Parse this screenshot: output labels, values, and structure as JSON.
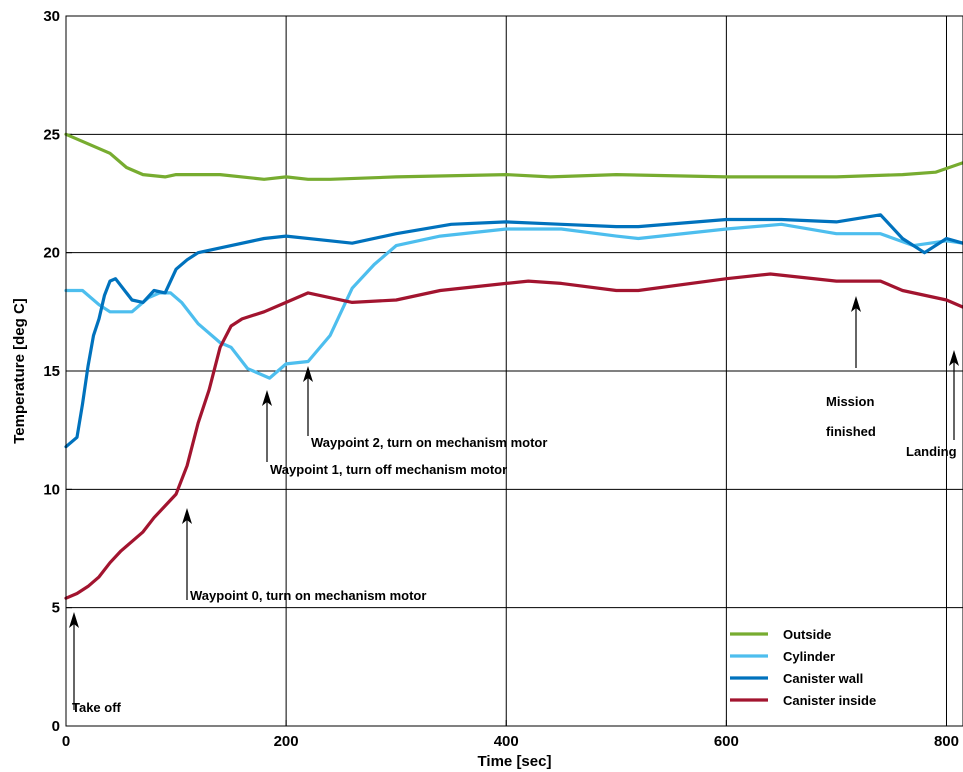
{
  "chart_data": {
    "type": "line",
    "xlabel": "Time [sec]",
    "ylabel": "Temperature [deg C]",
    "xlim": [
      0,
      815
    ],
    "ylim": [
      0,
      30
    ],
    "xticks": [
      "0",
      "200",
      "400",
      "600",
      "800"
    ],
    "yticks": [
      "0",
      "5",
      "10",
      "15",
      "20",
      "25",
      "30"
    ],
    "grid": true,
    "legend_position": "bottom-right",
    "series": [
      {
        "name": "Outside",
        "color": "#77ac30",
        "x": [
          0,
          20,
          40,
          55,
          70,
          90,
          100,
          140,
          180,
          200,
          220,
          240,
          300,
          400,
          440,
          500,
          600,
          700,
          760,
          790,
          815
        ],
        "y": [
          25.0,
          24.6,
          24.2,
          23.6,
          23.3,
          23.2,
          23.3,
          23.3,
          23.1,
          23.2,
          23.1,
          23.1,
          23.2,
          23.3,
          23.2,
          23.3,
          23.2,
          23.2,
          23.3,
          23.4,
          23.8
        ]
      },
      {
        "name": "Cylinder",
        "color": "#4dbeee",
        "x": [
          0,
          15,
          30,
          40,
          60,
          75,
          85,
          95,
          105,
          120,
          140,
          150,
          165,
          185,
          200,
          220,
          240,
          260,
          280,
          300,
          340,
          400,
          450,
          500,
          520,
          600,
          650,
          700,
          740,
          770,
          800,
          815
        ],
        "y": [
          18.4,
          18.4,
          17.8,
          17.5,
          17.5,
          18.1,
          18.3,
          18.3,
          17.9,
          17.0,
          16.2,
          16.0,
          15.1,
          14.7,
          15.3,
          15.4,
          16.5,
          18.5,
          19.5,
          20.3,
          20.7,
          21.0,
          21.0,
          20.7,
          20.6,
          21.0,
          21.2,
          20.8,
          20.8,
          20.3,
          20.5,
          20.4
        ]
      },
      {
        "name": "Canister wall",
        "color": "#0072bd",
        "x": [
          0,
          10,
          15,
          20,
          25,
          30,
          35,
          40,
          45,
          50,
          60,
          70,
          80,
          90,
          100,
          110,
          120,
          130,
          140,
          180,
          200,
          240,
          260,
          300,
          350,
          400,
          450,
          500,
          520,
          600,
          650,
          700,
          740,
          760,
          780,
          800,
          815
        ],
        "y": [
          11.8,
          12.2,
          13.6,
          15.2,
          16.5,
          17.2,
          18.2,
          18.8,
          18.9,
          18.6,
          18.0,
          17.9,
          18.4,
          18.3,
          19.3,
          19.7,
          20.0,
          20.1,
          20.2,
          20.6,
          20.7,
          20.5,
          20.4,
          20.8,
          21.2,
          21.3,
          21.2,
          21.1,
          21.1,
          21.4,
          21.4,
          21.3,
          21.6,
          20.6,
          20.0,
          20.6,
          20.4
        ]
      },
      {
        "name": "Canister inside",
        "color": "#a2142f",
        "x": [
          0,
          10,
          20,
          30,
          40,
          50,
          60,
          70,
          80,
          90,
          100,
          110,
          120,
          130,
          140,
          150,
          160,
          180,
          200,
          220,
          260,
          300,
          340,
          400,
          420,
          450,
          500,
          520,
          600,
          640,
          700,
          740,
          760,
          800,
          815
        ],
        "y": [
          5.4,
          5.6,
          5.9,
          6.3,
          6.9,
          7.4,
          7.8,
          8.2,
          8.8,
          9.3,
          9.8,
          11.0,
          12.8,
          14.2,
          16.0,
          16.9,
          17.2,
          17.5,
          17.9,
          18.3,
          17.9,
          18.0,
          18.4,
          18.7,
          18.8,
          18.7,
          18.4,
          18.4,
          18.9,
          19.1,
          18.8,
          18.8,
          18.4,
          18.0,
          17.7
        ]
      }
    ],
    "annotations": [
      {
        "text": "Take off",
        "x": 5,
        "y": 5.4
      },
      {
        "text": "Waypoint 0, turn on mechanism motor",
        "x": 110,
        "y": 9.6
      },
      {
        "text": "Waypoint 1, turn off mechanism motor",
        "x": 183,
        "y": 14.8
      },
      {
        "text": "Waypoint 2, turn on mechanism motor",
        "x": 221,
        "y": 15.2
      },
      {
        "text": "Mission finished",
        "x": 719,
        "y": 18.8
      },
      {
        "text": "Landing",
        "x": 808,
        "y": 16.0
      }
    ]
  }
}
